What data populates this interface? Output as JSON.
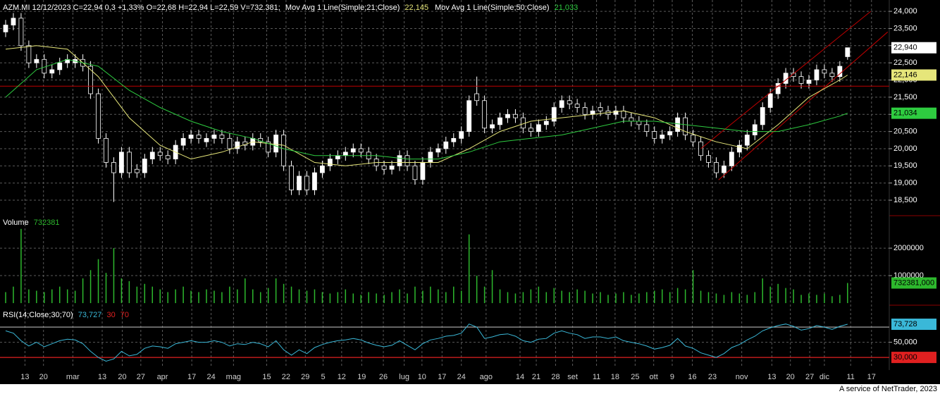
{
  "chart_data": [
    {
      "type": "candlestick",
      "title": "AZM.MI 12/12/2023 C=22,94 0,3 +1,33% O=22,68 H=22,94 L=22,59 V=732.381;",
      "open": [
        23.4,
        23.6,
        23.8,
        23.0,
        22.5,
        22.6,
        22.2,
        22.3,
        22.5,
        22.5,
        22.6,
        22.4,
        21.6,
        20.3,
        19.6,
        19.3,
        19.9,
        19.4,
        19.3,
        19.7,
        19.9,
        19.8,
        19.7,
        20.1,
        20.3,
        20.4,
        20.2,
        20.3,
        20.4,
        20.3,
        20.0,
        20.2,
        20.1,
        20.3,
        20.2,
        19.9,
        20.4,
        19.5,
        18.8,
        19.2,
        18.8,
        19.3,
        19.5,
        19.7,
        19.8,
        19.9,
        20.0,
        19.9,
        19.7,
        19.5,
        19.4,
        19.5,
        19.8,
        19.5,
        19.1,
        19.6,
        19.9,
        20.0,
        20.2,
        20.3,
        20.5,
        21.6,
        21.4,
        20.6,
        20.7,
        20.9,
        21.0,
        20.9,
        20.6,
        20.5,
        20.7,
        20.8,
        21.2,
        21.4,
        21.3,
        21.2,
        21.0,
        21.2,
        21.1,
        21.0,
        21.1,
        20.9,
        20.8,
        20.7,
        20.5,
        20.3,
        20.4,
        20.5,
        20.9,
        20.4,
        20.2,
        19.8,
        19.6,
        19.3,
        19.5,
        19.9,
        20.1,
        20.4,
        20.7,
        21.2,
        21.6,
        21.9,
        22.2,
        22.1,
        21.9,
        22.0,
        22.3,
        22.2,
        22.1,
        22.68
      ],
      "high": [
        23.75,
        23.95,
        23.95,
        23.15,
        22.75,
        22.75,
        22.45,
        22.65,
        22.75,
        22.75,
        22.75,
        22.55,
        21.75,
        20.45,
        19.75,
        20.05,
        20.05,
        19.55,
        19.85,
        20.05,
        20.05,
        19.95,
        20.25,
        20.45,
        20.55,
        20.55,
        20.45,
        20.55,
        20.55,
        20.45,
        20.35,
        20.35,
        20.45,
        20.45,
        20.35,
        20.55,
        20.55,
        19.65,
        19.35,
        19.35,
        19.45,
        19.65,
        19.85,
        19.95,
        20.05,
        20.15,
        20.15,
        20.05,
        19.85,
        19.65,
        19.65,
        19.95,
        19.95,
        19.65,
        19.75,
        20.05,
        20.15,
        20.35,
        20.45,
        20.65,
        21.55,
        22.1,
        21.55,
        20.85,
        21.05,
        21.15,
        21.15,
        21.05,
        20.75,
        20.85,
        20.95,
        21.35,
        21.55,
        21.55,
        21.45,
        21.35,
        21.25,
        21.35,
        21.25,
        21.25,
        21.25,
        21.05,
        20.95,
        20.85,
        20.65,
        20.55,
        20.65,
        21.05,
        21.05,
        20.55,
        20.35,
        19.95,
        19.75,
        19.65,
        20.05,
        20.25,
        20.55,
        20.85,
        21.35,
        21.75,
        22.05,
        22.35,
        22.35,
        22.25,
        22.15,
        22.45,
        22.45,
        22.35,
        22.55,
        22.94
      ],
      "low": [
        23.25,
        23.45,
        22.85,
        22.35,
        22.35,
        22.05,
        22.05,
        22.15,
        22.35,
        22.35,
        22.25,
        21.45,
        20.15,
        19.45,
        18.45,
        19.15,
        19.15,
        19.15,
        19.15,
        19.55,
        19.65,
        19.55,
        19.55,
        19.95,
        20.15,
        20.15,
        20.05,
        20.15,
        20.15,
        19.85,
        19.85,
        19.95,
        19.95,
        20.05,
        19.75,
        19.75,
        19.35,
        18.65,
        18.65,
        18.65,
        18.65,
        19.15,
        19.35,
        19.55,
        19.65,
        19.75,
        19.75,
        19.55,
        19.35,
        19.25,
        19.25,
        19.35,
        19.35,
        18.95,
        18.95,
        19.45,
        19.75,
        19.85,
        20.05,
        20.15,
        20.35,
        21.25,
        20.45,
        20.45,
        20.55,
        20.75,
        20.75,
        20.45,
        20.35,
        20.35,
        20.55,
        20.65,
        21.05,
        21.15,
        21.05,
        20.85,
        20.85,
        20.95,
        20.85,
        20.85,
        20.75,
        20.65,
        20.55,
        20.35,
        20.15,
        20.15,
        20.25,
        20.35,
        20.25,
        20.05,
        19.65,
        19.45,
        19.15,
        19.15,
        19.35,
        19.75,
        19.95,
        20.25,
        20.55,
        21.05,
        21.45,
        21.75,
        21.95,
        21.75,
        21.75,
        21.85,
        22.05,
        21.95,
        21.95,
        22.59
      ],
      "close": [
        23.6,
        23.8,
        23.0,
        22.5,
        22.6,
        22.2,
        22.3,
        22.5,
        22.6,
        22.6,
        22.4,
        21.6,
        20.3,
        19.6,
        19.3,
        19.9,
        19.3,
        19.3,
        19.7,
        19.9,
        19.8,
        19.7,
        20.1,
        20.3,
        20.4,
        20.3,
        20.3,
        20.4,
        20.3,
        20.0,
        20.2,
        20.1,
        20.3,
        20.2,
        19.9,
        20.4,
        19.5,
        18.8,
        19.2,
        18.8,
        19.3,
        19.5,
        19.7,
        19.8,
        19.9,
        20.0,
        19.9,
        19.7,
        19.5,
        19.4,
        19.5,
        19.8,
        19.5,
        19.1,
        19.6,
        19.9,
        20.0,
        20.2,
        20.3,
        20.5,
        21.4,
        21.4,
        20.6,
        20.7,
        20.9,
        21.0,
        20.9,
        20.6,
        20.5,
        20.7,
        20.8,
        21.2,
        21.4,
        21.3,
        21.2,
        21.0,
        21.1,
        21.1,
        21.0,
        21.1,
        20.9,
        20.8,
        20.7,
        20.5,
        20.3,
        20.4,
        20.5,
        20.9,
        20.4,
        20.2,
        19.8,
        19.6,
        19.3,
        19.5,
        19.9,
        20.1,
        20.4,
        20.7,
        21.2,
        21.6,
        21.9,
        22.2,
        22.1,
        21.9,
        22.0,
        22.3,
        22.2,
        22.1,
        22.4,
        22.94
      ],
      "last_label": "22,940",
      "color_up": "#ffffff",
      "color_down": "#000000",
      "color_outline": "#ffffff",
      "series": [
        {
          "name": "Mov Avg 1 Line(Simple;21;Close)",
          "color": "#e6e67a",
          "x": [
            0,
            4,
            8,
            12,
            16,
            20,
            24,
            28,
            32,
            36,
            40,
            44,
            48,
            52,
            56,
            60,
            64,
            68,
            72,
            76,
            80,
            84,
            88,
            92,
            96,
            100,
            104,
            108,
            109
          ],
          "values": [
            22.9,
            23.0,
            22.9,
            22.1,
            20.9,
            20.1,
            19.7,
            19.9,
            20.2,
            20.1,
            19.6,
            19.5,
            19.6,
            19.6,
            19.6,
            20.0,
            20.5,
            20.8,
            20.9,
            21.0,
            21.1,
            20.9,
            20.5,
            20.2,
            20.0,
            20.7,
            21.5,
            22.0,
            22.145
          ],
          "header_label": "22,145",
          "last_label": "22,146"
        },
        {
          "name": "Mov Avg 1 Line(Simple;50;Close)",
          "color": "#2ecc40",
          "x": [
            0,
            4,
            8,
            12,
            16,
            20,
            24,
            28,
            32,
            36,
            40,
            44,
            48,
            52,
            56,
            60,
            64,
            68,
            72,
            76,
            80,
            84,
            88,
            92,
            96,
            100,
            104,
            108,
            109
          ],
          "values": [
            21.5,
            22.3,
            22.6,
            22.4,
            21.7,
            21.2,
            20.8,
            20.5,
            20.3,
            20.0,
            19.8,
            19.8,
            19.8,
            19.7,
            19.7,
            19.9,
            20.2,
            20.3,
            20.4,
            20.6,
            20.8,
            20.8,
            20.7,
            20.6,
            20.5,
            20.5,
            20.7,
            20.95,
            21.033
          ],
          "header_label": "21,033",
          "last_label": "21,034"
        }
      ],
      "xlim": [
        -0.73,
        114.4
      ],
      "xticks": [
        {
          "value": 2.5,
          "label": "13"
        },
        {
          "value": 4.9,
          "label": "20"
        },
        {
          "value": 8.7,
          "label": "mar"
        },
        {
          "value": 12.5,
          "label": "13"
        },
        {
          "value": 15.1,
          "label": "20"
        },
        {
          "value": 17.5,
          "label": "27"
        },
        {
          "value": 20.3,
          "label": "apr"
        },
        {
          "value": 24.1,
          "label": "17"
        },
        {
          "value": 26.6,
          "label": "24"
        },
        {
          "value": 29.5,
          "label": "mag"
        },
        {
          "value": 33.8,
          "label": "15"
        },
        {
          "value": 36.3,
          "label": "22"
        },
        {
          "value": 38.8,
          "label": "29"
        },
        {
          "value": 41.1,
          "label": "5"
        },
        {
          "value": 43.5,
          "label": "12"
        },
        {
          "value": 46.1,
          "label": "19"
        },
        {
          "value": 48.9,
          "label": "26"
        },
        {
          "value": 51.6,
          "label": "lug"
        },
        {
          "value": 53.9,
          "label": "10"
        },
        {
          "value": 56.5,
          "label": "17"
        },
        {
          "value": 59,
          "label": "24"
        },
        {
          "value": 62.2,
          "label": "ago"
        },
        {
          "value": 66.6,
          "label": "14"
        },
        {
          "value": 68.7,
          "label": "21"
        },
        {
          "value": 71.2,
          "label": "28"
        },
        {
          "value": 73.4,
          "label": "set"
        },
        {
          "value": 76.5,
          "label": "11"
        },
        {
          "value": 78.9,
          "label": "18"
        },
        {
          "value": 81.5,
          "label": "25"
        },
        {
          "value": 83.9,
          "label": "ott"
        },
        {
          "value": 86.3,
          "label": "9"
        },
        {
          "value": 88.9,
          "label": "16"
        },
        {
          "value": 91.5,
          "label": "23"
        },
        {
          "value": 95.3,
          "label": "nov"
        },
        {
          "value": 99.2,
          "label": "13"
        },
        {
          "value": 101.6,
          "label": "20"
        },
        {
          "value": 104.1,
          "label": "27"
        },
        {
          "value": 106,
          "label": "dic"
        },
        {
          "value": 109.4,
          "label": "11"
        },
        {
          "value": 112.1,
          "label": "17"
        }
      ],
      "ylim": [
        18.07,
        24.33
      ],
      "yticks": [
        {
          "value": 18.5,
          "label": "18,500"
        },
        {
          "value": 19,
          "label": "19,000"
        },
        {
          "value": 19.5,
          "label": "19,500"
        },
        {
          "value": 20,
          "label": "20,000"
        },
        {
          "value": 20.5,
          "label": "20,500"
        },
        {
          "value": 21,
          "label": "21,000"
        },
        {
          "value": 21.5,
          "label": "21,500"
        },
        {
          "value": 22,
          "label": "22,000"
        },
        {
          "value": 22.5,
          "label": "22,500"
        },
        {
          "value": 23,
          "label": "23,000"
        },
        {
          "value": 23.5,
          "label": "23,500"
        },
        {
          "value": 24,
          "label": "24,000"
        }
      ],
      "grid": true,
      "hlines": [
        {
          "value": 21.82,
          "color": "#c00000"
        }
      ],
      "trendlines": [
        {
          "x": [
            90,
            112
          ],
          "y": [
            20.0,
            24.0
          ],
          "color": "#c00000"
        },
        {
          "x": [
            92.3,
            114.2
          ],
          "y": [
            19.09,
            23.4
          ],
          "color": "#c00000"
        }
      ]
    },
    {
      "type": "bar",
      "title": "Volume",
      "value_label": "732381",
      "color": "#2db82d",
      "values": [
        400000,
        600000,
        2700000,
        500000,
        450000,
        400000,
        500000,
        600000,
        500000,
        450000,
        900000,
        1200000,
        1600000,
        1100000,
        2000000,
        900000,
        800000,
        600000,
        700000,
        600000,
        500000,
        400000,
        500000,
        600000,
        450000,
        400000,
        500000,
        450000,
        400000,
        600000,
        500000,
        900000,
        500000,
        400000,
        550000,
        900000,
        700000,
        600000,
        500000,
        450000,
        500000,
        400000,
        350000,
        400000,
        500000,
        350000,
        300000,
        400000,
        350000,
        300000,
        400000,
        500000,
        350000,
        600000,
        450000,
        600000,
        500000,
        400000,
        600000,
        450000,
        2500000,
        1000000,
        600000,
        1200000,
        500000,
        400000,
        350000,
        400000,
        500000,
        600000,
        400000,
        550000,
        450000,
        400000,
        500000,
        450000,
        350000,
        400000,
        300000,
        350000,
        400000,
        300000,
        350000,
        400000,
        450000,
        500000,
        400000,
        550000,
        500000,
        1200000,
        450000,
        400000,
        350000,
        300000,
        400000,
        350000,
        300000,
        400000,
        900000,
        600000,
        700000,
        550000,
        500000,
        300000,
        350000,
        300000,
        350000,
        250000,
        300000,
        732381
      ],
      "ylim": [
        -50000,
        3130000
      ],
      "yticks": [
        1000000,
        2000000
      ],
      "grid": true,
      "last_label": "732381,000"
    },
    {
      "type": "line",
      "title": "RSI(14;Close;30;70)",
      "header_label": "73,727",
      "color": "#3ab8d8",
      "values": [
        65,
        62,
        52,
        45,
        50,
        44,
        48,
        52,
        54,
        53,
        48,
        38,
        30,
        25,
        28,
        38,
        32,
        34,
        42,
        45,
        44,
        42,
        48,
        50,
        52,
        50,
        50,
        52,
        50,
        45,
        48,
        47,
        50,
        48,
        44,
        52,
        40,
        33,
        40,
        35,
        43,
        47,
        50,
        52,
        53,
        55,
        53,
        49,
        46,
        44,
        46,
        52,
        46,
        40,
        48,
        53,
        55,
        58,
        59,
        62,
        74,
        70,
        55,
        57,
        60,
        61,
        58,
        52,
        50,
        54,
        55,
        62,
        65,
        62,
        60,
        55,
        57,
        57,
        55,
        57,
        52,
        50,
        48,
        45,
        41,
        43,
        46,
        55,
        45,
        42,
        36,
        33,
        30,
        35,
        43,
        47,
        53,
        58,
        65,
        69,
        72,
        74,
        71,
        66,
        68,
        72,
        70,
        67,
        71,
        73.727
      ],
      "ylim": [
        18,
        97
      ],
      "yticks": [
        {
          "value": 50,
          "label": "50,000"
        }
      ],
      "grid": true,
      "last_label": "73,728",
      "levels": [
        {
          "value": 30,
          "label": "30",
          "color": "#e02020",
          "axis_label": "30,000"
        },
        {
          "value": 70,
          "label": "70",
          "color": "#b4b4b4"
        }
      ]
    }
  ],
  "footer": "A service of NetTrader, 2023"
}
